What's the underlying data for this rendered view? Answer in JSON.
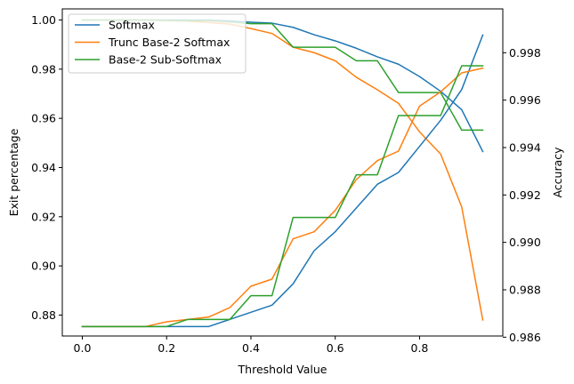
{
  "chart_data": {
    "type": "line",
    "title": "",
    "xlabel": "Threshold Value",
    "ylabel": "Exit percentage",
    "y2label": "Accuracy",
    "xlim": [
      -0.0475,
      0.9975
    ],
    "ylim": [
      0.8715,
      1.0045
    ],
    "y2lim": [
      0.98605,
      0.99985
    ],
    "x_ticks": [
      0.0,
      0.2,
      0.4,
      0.6,
      0.8
    ],
    "x_tick_labels": [
      "0.0",
      "0.2",
      "0.4",
      "0.6",
      "0.8"
    ],
    "y_ticks": [
      0.88,
      0.9,
      0.92,
      0.94,
      0.96,
      0.98,
      1.0
    ],
    "y_tick_labels": [
      "0.88",
      "0.90",
      "0.92",
      "0.94",
      "0.96",
      "0.98",
      "1.00"
    ],
    "y2_ticks": [
      0.986,
      0.988,
      0.99,
      0.992,
      0.994,
      0.996,
      0.998
    ],
    "y2_tick_labels": [
      "0.986",
      "0.988",
      "0.990",
      "0.992",
      "0.994",
      "0.996",
      "0.998"
    ],
    "grid": false,
    "legend_position": "top-left",
    "x": [
      0.0,
      0.05,
      0.1,
      0.15,
      0.2,
      0.25,
      0.3,
      0.35,
      0.4,
      0.45,
      0.5,
      0.55,
      0.6,
      0.65,
      0.7,
      0.75,
      0.8,
      0.85,
      0.9,
      0.95
    ],
    "series": [
      {
        "name": "Softmax",
        "axis": "left",
        "color": "#1f77b4",
        "values": [
          1.0,
          1.0,
          1.0,
          1.0,
          1.0,
          1.0,
          1.0,
          0.9996,
          0.9991,
          0.9987,
          0.997,
          0.994,
          0.9915,
          0.9885,
          0.985,
          0.982,
          0.977,
          0.971,
          0.9635,
          0.9465
        ]
      },
      {
        "name": "Trunc Base-2 Softmax",
        "axis": "left",
        "color": "#ff7f0e",
        "values": [
          1.0,
          1.0,
          1.0,
          1.0,
          0.9998,
          0.9995,
          0.999,
          0.9983,
          0.9965,
          0.9945,
          0.9889,
          0.9867,
          0.9834,
          0.9767,
          0.9716,
          0.9661,
          0.9545,
          0.9455,
          0.924,
          0.878
        ]
      },
      {
        "name": "Base-2 Sub-Softmax",
        "axis": "left",
        "color": "#2ca02c",
        "values": [
          1.0,
          1.0,
          1.0,
          1.0,
          0.9997,
          0.9997,
          0.9997,
          0.9992,
          0.9985,
          0.9985,
          0.9889,
          0.9889,
          0.9889,
          0.9834,
          0.9834,
          0.9705,
          0.9705,
          0.9705,
          0.9552,
          0.9552
        ]
      },
      {
        "name": "Softmax",
        "axis": "right",
        "color": "#1f77b4",
        "values": [
          0.98645,
          0.98645,
          0.98645,
          0.98645,
          0.98645,
          0.98645,
          0.98645,
          0.98675,
          0.98705,
          0.98735,
          0.98825,
          0.98965,
          0.99045,
          0.99145,
          0.99245,
          0.99295,
          0.99405,
          0.99515,
          0.99645,
          0.99875
        ]
      },
      {
        "name": "Trunc Base-2 Softmax",
        "axis": "right",
        "color": "#ff7f0e",
        "values": [
          0.98645,
          0.98645,
          0.98645,
          0.98645,
          0.98665,
          0.98675,
          0.98685,
          0.98725,
          0.98815,
          0.98845,
          0.99015,
          0.99045,
          0.99135,
          0.99265,
          0.99345,
          0.99385,
          0.99575,
          0.99635,
          0.99715,
          0.99735
        ]
      },
      {
        "name": "Base-2 Sub-Softmax",
        "axis": "right",
        "color": "#2ca02c",
        "values": [
          0.98645,
          0.98645,
          0.98645,
          0.98645,
          0.98645,
          0.98675,
          0.98675,
          0.98675,
          0.98775,
          0.98775,
          0.99105,
          0.99105,
          0.99105,
          0.99285,
          0.99285,
          0.99535,
          0.99535,
          0.99535,
          0.99745,
          0.99745
        ]
      }
    ]
  }
}
